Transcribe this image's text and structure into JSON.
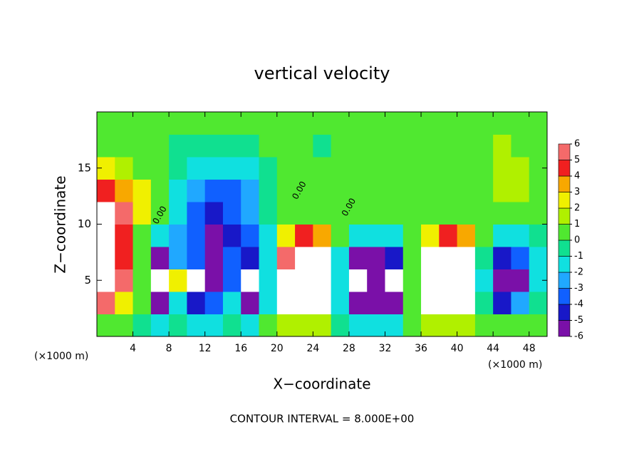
{
  "chart_data": {
    "type": "contour",
    "title": "vertical velocity",
    "x_label": "X−coordinate",
    "y_label": "Z−coordinate",
    "x_unit": "(×1000 m)",
    "x_unit_right": "(×1000 m)",
    "annotation": "CONTOUR INTERVAL = 8.000E+00",
    "xlim": [
      0,
      50
    ],
    "ylim": [
      0,
      20
    ],
    "xticks": [
      4,
      8,
      12,
      16,
      20,
      24,
      28,
      32,
      36,
      40,
      44,
      48
    ],
    "yticks": [
      5,
      10,
      15
    ],
    "x": [
      1,
      3,
      5,
      7,
      9,
      11,
      13,
      15,
      17,
      19,
      21,
      23,
      25,
      27,
      29,
      31,
      33,
      35,
      37,
      39,
      41,
      43,
      45,
      47,
      49
    ],
    "y": [
      1,
      3,
      5,
      7,
      9,
      11,
      13,
      15,
      17,
      19
    ],
    "z": [
      [
        0.5,
        0.5,
        0,
        -1,
        -0.5,
        -1,
        -1,
        -0.3,
        -1,
        0.2,
        2,
        2,
        1.5,
        -0.3,
        -1,
        -1,
        -1,
        0.2,
        2,
        2,
        1.5,
        0.2,
        0.3,
        0.5,
        0.3
      ],
      [
        6,
        3,
        0.3,
        -5,
        -1,
        -4,
        -3,
        -1,
        -6,
        -1,
        8,
        8,
        7,
        -1,
        -6,
        -5,
        -6,
        0.5,
        8,
        8,
        7,
        -0.5,
        -4,
        -2,
        0
      ],
      [
        8,
        6,
        0.5,
        -8,
        3,
        -8,
        -5,
        -3,
        -8,
        -1,
        8,
        8,
        8,
        -1,
        -8,
        -6,
        -8,
        0.5,
        8,
        8,
        8,
        -1,
        -6,
        -5,
        -1
      ],
      [
        8,
        5,
        0.5,
        -5,
        -2,
        -3,
        -5,
        -3.5,
        -4,
        -1,
        6,
        8,
        7,
        -1,
        -5,
        -5,
        -4.5,
        0.5,
        7,
        8,
        7,
        -0.5,
        -4,
        -3,
        -1
      ],
      [
        8,
        5,
        1,
        -1.5,
        -2.5,
        -3.5,
        -5,
        -4,
        -3,
        -1,
        3,
        4.5,
        4,
        0.5,
        -1.5,
        -1,
        -1,
        0.5,
        3,
        4.5,
        4,
        0.5,
        -1,
        -1,
        -0.5
      ],
      [
        7,
        5.5,
        2.5,
        0.2,
        -1.5,
        -3,
        -4,
        -3.5,
        -2.5,
        -0.5,
        0.5,
        1,
        0.8,
        0.2,
        0.3,
        0.5,
        0.3,
        0.3,
        0.5,
        1,
        0.8,
        0.3,
        0.5,
        0.3,
        0.3
      ],
      [
        4.5,
        4,
        2.5,
        0.5,
        -1,
        -2,
        -3,
        -3,
        -2,
        -0.5,
        0.3,
        0.4,
        0.3,
        0.3,
        0.5,
        0.5,
        0.3,
        0.3,
        0.4,
        0.5,
        0.5,
        0.8,
        2,
        1.5,
        0.8
      ],
      [
        2.5,
        2,
        1,
        0.3,
        -0.5,
        -1,
        -1.5,
        -1.5,
        -1.2,
        -0.3,
        0.3,
        0.3,
        0.2,
        0.3,
        0.5,
        0.6,
        0.5,
        0.3,
        0.4,
        0.6,
        0.8,
        0.8,
        2,
        1.5,
        0.8
      ],
      [
        0.8,
        1,
        0.6,
        0.2,
        0,
        -0.3,
        -0.3,
        -0.3,
        -0.2,
        0.2,
        0.4,
        0.2,
        0,
        0.3,
        0.6,
        0.6,
        0.4,
        0.3,
        0.6,
        0.8,
        0.6,
        0.5,
        1.2,
        1,
        0.8
      ],
      [
        0.5,
        0.5,
        0.5,
        0.3,
        0.2,
        0.5,
        0.5,
        0.5,
        0.5,
        0.5,
        0.3,
        0.2,
        0.2,
        0.2,
        0.5,
        0.5,
        0.3,
        0.3,
        0.5,
        0.5,
        0.5,
        0.3,
        0.8,
        0.5,
        0.5
      ]
    ],
    "levels": [
      -6,
      -5,
      -4,
      -3,
      -2,
      -1,
      0,
      1,
      2,
      3,
      4,
      5,
      6
    ],
    "colors": [
      "#7a10a8",
      "#1818c8",
      "#1060ff",
      "#20a8ff",
      "#10e0e0",
      "#10e090",
      "#50e830",
      "#b0f000",
      "#f0f000",
      "#f8a800",
      "#f02020",
      "#f46a6a"
    ],
    "over_color": "#ffffff",
    "under_color": "#ffffff",
    "contour_labels": [
      {
        "text": "0.00",
        "x": 7,
        "y": 10.8
      },
      {
        "text": "0.00",
        "x": 22.5,
        "y": 13
      },
      {
        "text": "0.00",
        "x": 28,
        "y": 11.5
      }
    ]
  }
}
